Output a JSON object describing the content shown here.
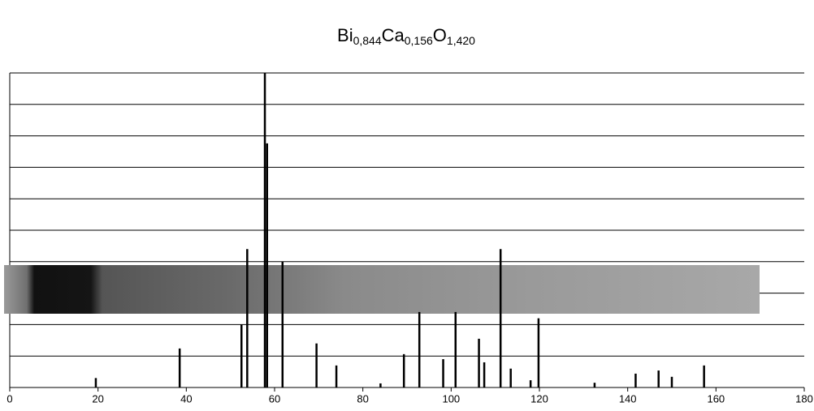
{
  "chart_data": {
    "type": "stem",
    "title": [
      "Bi",
      "0,844",
      "Ca",
      "0,156",
      "O",
      "1,420"
    ],
    "x": [
      19.5,
      38.5,
      52.5,
      53.8,
      57.8,
      58.3,
      61.8,
      69.5,
      74,
      84,
      89.3,
      92.8,
      98.2,
      101,
      106.3,
      107.5,
      111.2,
      113.5,
      118,
      119.8,
      132.5,
      141.8,
      147,
      150,
      157.3
    ],
    "values": [
      3,
      12.4,
      20,
      44,
      100,
      77.6,
      40,
      14,
      7,
      1.3,
      10.6,
      24,
      9,
      24,
      15.5,
      8,
      44,
      6,
      2.3,
      22,
      1.5,
      4.4,
      5.4,
      3.4,
      7
    ],
    "color": "#000000",
    "xlim": [
      0,
      180
    ],
    "xticks": [
      0,
      20,
      40,
      60,
      80,
      100,
      120,
      140,
      160,
      180
    ],
    "ylim": [
      0,
      100
    ],
    "yticks": [
      0,
      10,
      20,
      30,
      40,
      50,
      60,
      70,
      80,
      90,
      100
    ],
    "show_ytick_labels": false,
    "grid": true
  }
}
